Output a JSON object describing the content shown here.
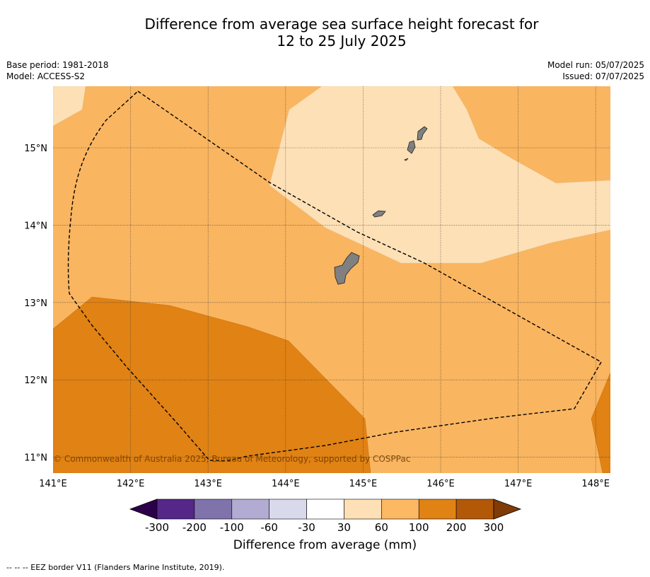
{
  "title": {
    "line1": "Difference from average sea surface height forecast for",
    "line2": "12 to 25 July 2025"
  },
  "meta_left": {
    "base_period": "Base period: 1981-2018",
    "model": "Model: ACCESS-S2"
  },
  "meta_right": {
    "model_run": "Model run: 05/07/2025",
    "issued": "Issued: 07/07/2025"
  },
  "map": {
    "lon_range": [
      141.0,
      148.2
    ],
    "lat_range": [
      10.8,
      15.8
    ],
    "lon_ticks": [
      "141°E",
      "142°E",
      "143°E",
      "144°E",
      "145°E",
      "146°E",
      "147°E",
      "148°E"
    ],
    "lat_ticks": [
      "15°N",
      "14°N",
      "13°N",
      "12°N",
      "11°N"
    ],
    "copyright": "© Commonwealth of Australia 2025, Bureau of Meteorology, supported by COSPPac",
    "colors": {
      "band_30_60": "#fde0b6",
      "band_60_100": "#f9b560",
      "band_100_200": "#e08214",
      "land": "#808080"
    }
  },
  "colorbar": {
    "ticks": [
      "-300",
      "-200",
      "-100",
      "-60",
      "-30",
      "30",
      "60",
      "100",
      "200",
      "300"
    ],
    "colors": [
      "#2d004b",
      "#542788",
      "#8073ac",
      "#b2abd2",
      "#d8daeb",
      "#ffffff",
      "#fee0b6",
      "#fdb863",
      "#e08214",
      "#b35806",
      "#7f3b08"
    ],
    "label": "Difference from average (mm)"
  },
  "footnote": "--  --  -- EEZ border V11 (Flanders Marine Institute, 2019)."
}
